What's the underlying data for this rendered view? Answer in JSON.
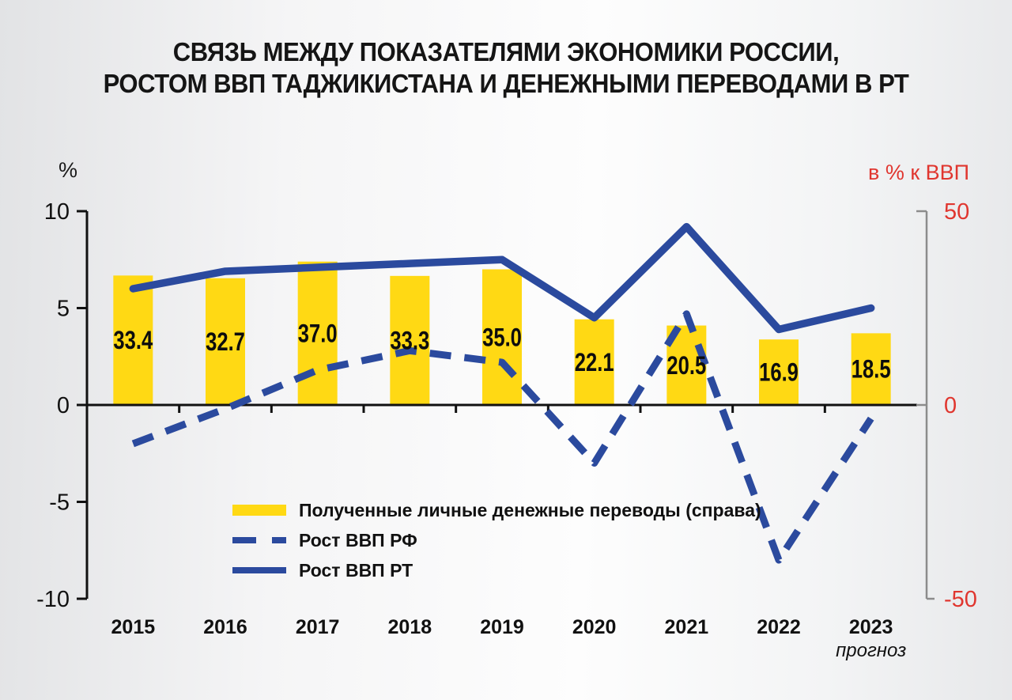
{
  "title": {
    "line1": "СВЯЗЬ МЕЖДУ ПОКАЗАТЕЛЯМИ ЭКОНОМИКИ РОССИИ,",
    "line2": "РОСТОМ ВВП ТАДЖИКИСТАНА И ДЕНЕЖНЫМИ ПЕРЕВОДАМИ В РТ"
  },
  "chart_data": {
    "type": "combo",
    "categories": [
      "2015",
      "2016",
      "2017",
      "2018",
      "2019",
      "2020",
      "2021",
      "2022",
      "2023"
    ],
    "category_note": {
      "index": 8,
      "label": "прогноз"
    },
    "series": [
      {
        "name": "Полученные личные денежные переводы (справа)",
        "type": "bar",
        "axis": "right",
        "color": "#FFD914",
        "values": [
          33.4,
          32.7,
          37.0,
          33.3,
          35.0,
          22.1,
          20.5,
          16.9,
          18.5
        ],
        "value_labels_shown": true
      },
      {
        "name": "Рост ВВП РФ",
        "type": "line",
        "style": "dashed",
        "axis": "left",
        "color": "#2B4A9E",
        "values": [
          -2.0,
          -0.2,
          1.8,
          2.8,
          2.2,
          -3.0,
          4.7,
          -8.0,
          -0.7
        ]
      },
      {
        "name": "Рост ВВП РТ",
        "type": "line",
        "style": "solid",
        "axis": "left",
        "color": "#2B4A9E",
        "values": [
          6.0,
          6.9,
          7.1,
          7.3,
          7.5,
          4.5,
          9.2,
          3.9,
          5.0
        ]
      }
    ],
    "left_axis": {
      "label": "%",
      "min": -10,
      "max": 10,
      "ticks": [
        10,
        5,
        0,
        -5,
        -10
      ],
      "color": "#111111"
    },
    "right_axis": {
      "label": "в % к ВВП",
      "min": -50,
      "max": 50,
      "ticks": [
        50,
        0,
        -50
      ],
      "color": "#E0362F",
      "line_color": "#8C8C8C"
    },
    "grid": false,
    "legend_position": "inside-bottom-left",
    "value_label_color": "#0d0d0d"
  }
}
